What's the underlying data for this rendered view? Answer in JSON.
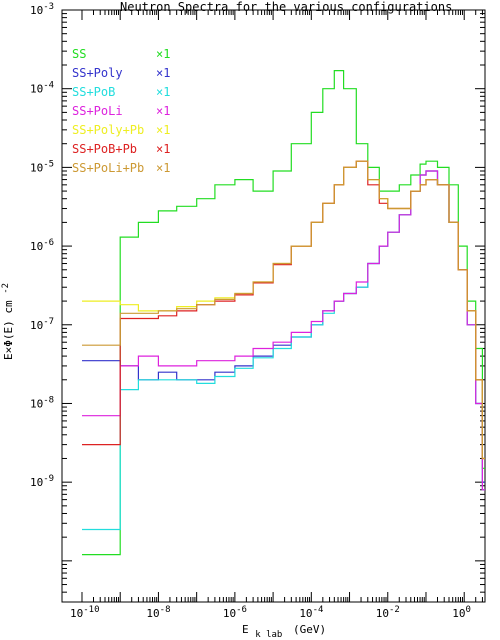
{
  "chart_data": {
    "type": "line",
    "title": "Neutron Spectra for the various configurations",
    "xlabel": {
      "main": "E",
      "sub": "k lab",
      "unit": "(GeV)"
    },
    "ylabel": {
      "main": "E×Φ(E) cm",
      "sup": "-2"
    },
    "xscale": "log",
    "yscale": "log",
    "xlim": [
      3e-11,
      3.5
    ],
    "ylim": [
      3e-11,
      0.001
    ],
    "x_ticks": [
      {
        "label": "10",
        "sup": "-10",
        "value": 1e-10
      },
      {
        "label": "10",
        "sup": "-8",
        "value": 1e-08
      },
      {
        "label": "10",
        "sup": "-6",
        "value": 1e-06
      },
      {
        "label": "10",
        "sup": "-4",
        "value": 0.0001
      },
      {
        "label": "10",
        "sup": "-2",
        "value": 0.01
      },
      {
        "label": "10",
        "sup": "0",
        "value": 1
      }
    ],
    "y_ticks": [
      {
        "label": "10",
        "sup": "-9",
        "value": 1e-09
      },
      {
        "label": "10",
        "sup": "-8",
        "value": 1e-08
      },
      {
        "label": "10",
        "sup": "-7",
        "value": 1e-07
      },
      {
        "label": "10",
        "sup": "-6",
        "value": 1e-06
      },
      {
        "label": "10",
        "sup": "-5",
        "value": 1e-05
      },
      {
        "label": "10",
        "sup": "-4",
        "value": 0.0001
      },
      {
        "label": "10",
        "sup": "-3",
        "value": 0.001
      }
    ],
    "legend_position": "top-left",
    "x": [
      1e-10,
      5e-10,
      1e-09,
      3e-09,
      1e-08,
      3e-08,
      1e-07,
      3e-07,
      1e-06,
      3e-06,
      1e-05,
      3e-05,
      0.0001,
      0.0002,
      0.0004,
      0.0007,
      0.0015,
      0.003,
      0.006,
      0.01,
      0.02,
      0.04,
      0.07,
      0.1,
      0.2,
      0.4,
      0.7,
      1.2,
      2,
      3
    ],
    "series": [
      {
        "name": "SS",
        "scale": "×1",
        "color": "#22dd22",
        "values": [
          1.2e-10,
          1.2e-10,
          1.3e-06,
          2e-06,
          2.8e-06,
          3.2e-06,
          4e-06,
          6e-06,
          7e-06,
          5e-06,
          9e-06,
          2e-05,
          5e-05,
          0.0001,
          0.00017,
          0.0001,
          2e-05,
          1e-05,
          5e-06,
          5e-06,
          6e-06,
          8e-06,
          1.1e-05,
          1.2e-05,
          1e-05,
          6e-06,
          1e-06,
          2e-07,
          5e-08,
          1.5e-09
        ]
      },
      {
        "name": "SS+Poly",
        "scale": "×1",
        "color": "#3333cc",
        "values": [
          3.5e-08,
          3.5e-08,
          3e-08,
          2e-08,
          2.5e-08,
          2e-08,
          2e-08,
          2.5e-08,
          3e-08,
          4e-08,
          5.5e-08,
          7e-08,
          1e-07,
          1.5e-07,
          2e-07,
          2.5e-07,
          3e-07,
          6e-07,
          1e-06,
          1.5e-06,
          2.5e-06,
          5e-06,
          8e-06,
          9e-06,
          6e-06,
          2e-06,
          5e-07,
          1e-07,
          1e-08,
          1e-09
        ]
      },
      {
        "name": "SS+PoB",
        "scale": "×1",
        "color": "#22dddd",
        "values": [
          2.5e-10,
          2.5e-10,
          1.5e-08,
          2e-08,
          2e-08,
          2e-08,
          1.8e-08,
          2.2e-08,
          2.8e-08,
          3.8e-08,
          5e-08,
          7e-08,
          1e-07,
          1.4e-07,
          2e-07,
          2.5e-07,
          3e-07,
          6e-07,
          1e-06,
          1.5e-06,
          2.5e-06,
          5e-06,
          8e-06,
          9e-06,
          6e-06,
          2e-06,
          5e-07,
          1e-07,
          1e-08,
          8e-10
        ]
      },
      {
        "name": "SS+PoLi",
        "scale": "×1",
        "color": "#dd22dd",
        "values": [
          7e-09,
          7e-09,
          3e-08,
          4e-08,
          3e-08,
          3e-08,
          3.5e-08,
          3.5e-08,
          4e-08,
          5e-08,
          6e-08,
          8e-08,
          1.1e-07,
          1.5e-07,
          2e-07,
          2.5e-07,
          3.5e-07,
          6e-07,
          1e-06,
          1.5e-06,
          2.5e-06,
          5e-06,
          8e-06,
          9e-06,
          6e-06,
          2e-06,
          5e-07,
          1e-07,
          1e-08,
          8e-10
        ]
      },
      {
        "name": "SS+Poly+Pb",
        "scale": "×1",
        "color": "#eeee22",
        "values": [
          2e-07,
          2e-07,
          1.8e-07,
          1.5e-07,
          1.5e-07,
          1.7e-07,
          2e-07,
          2.2e-07,
          2.5e-07,
          3.5e-07,
          6e-07,
          1e-06,
          2e-06,
          3.5e-06,
          6e-06,
          1e-05,
          1.2e-05,
          7e-06,
          4e-06,
          3e-06,
          3e-06,
          5e-06,
          6e-06,
          7e-06,
          6e-06,
          2e-06,
          5e-07,
          1.5e-07,
          2e-08,
          2e-09
        ]
      },
      {
        "name": "SS+PoB+Pb",
        "scale": "×1",
        "color": "#dd2222",
        "values": [
          3e-09,
          3e-09,
          1.2e-07,
          1.2e-07,
          1.3e-07,
          1.5e-07,
          1.8e-07,
          2e-07,
          2.4e-07,
          3.4e-07,
          5.8e-07,
          1e-06,
          2e-06,
          3.5e-06,
          6e-06,
          1e-05,
          1.2e-05,
          6e-06,
          3.5e-06,
          3e-06,
          3e-06,
          5e-06,
          6e-06,
          7e-06,
          6e-06,
          2e-06,
          5e-07,
          1.5e-07,
          2e-08,
          2e-09
        ]
      },
      {
        "name": "SS+PoLi+Pb",
        "scale": "×1",
        "color": "#cc9933",
        "values": [
          5.5e-08,
          5.5e-08,
          1.4e-07,
          1.4e-07,
          1.5e-07,
          1.6e-07,
          1.8e-07,
          2.1e-07,
          2.5e-07,
          3.5e-07,
          6e-07,
          1e-06,
          2e-06,
          3.5e-06,
          6e-06,
          1e-05,
          1.2e-05,
          7e-06,
          4e-06,
          3e-06,
          3e-06,
          5e-06,
          6e-06,
          7e-06,
          6e-06,
          2e-06,
          5e-07,
          1.5e-07,
          2e-08,
          2e-09
        ]
      }
    ]
  }
}
